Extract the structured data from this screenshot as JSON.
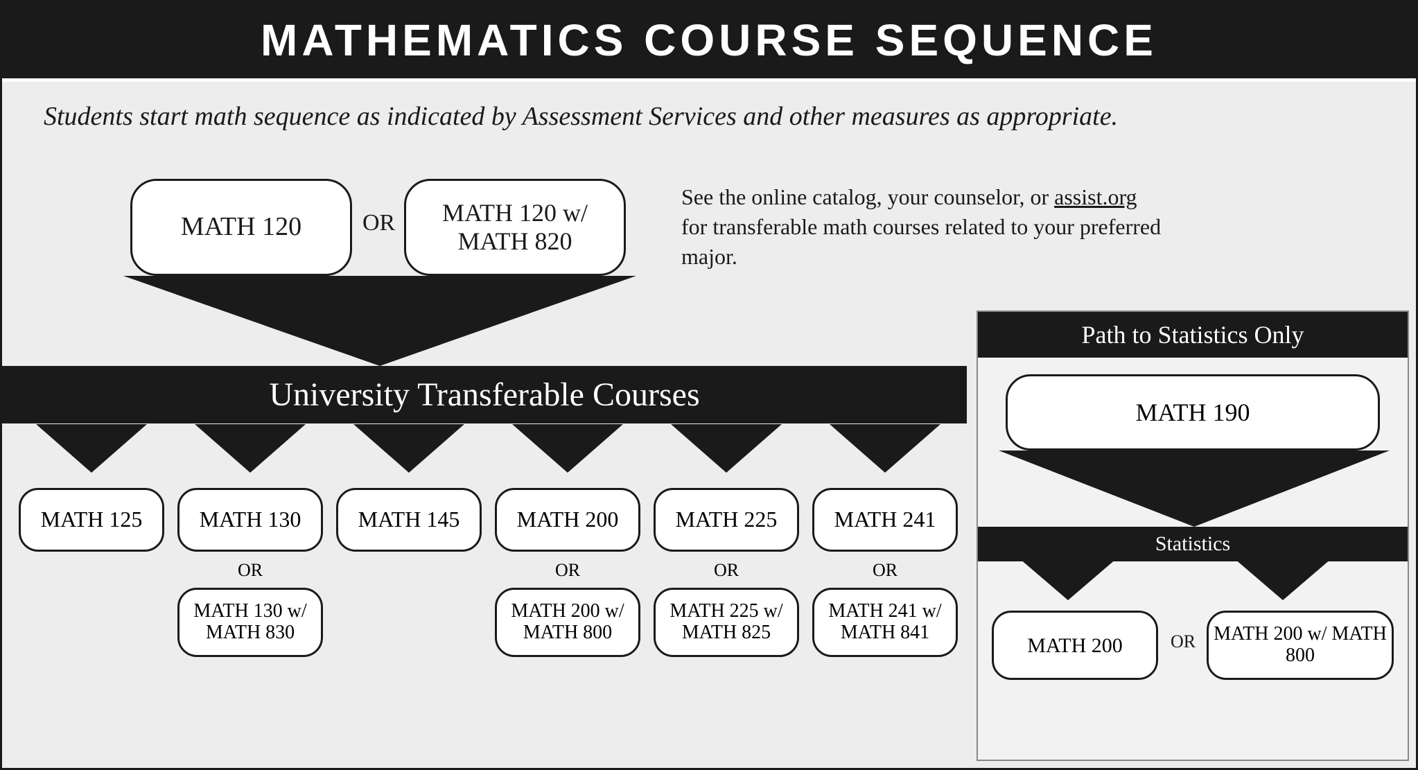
{
  "title": "MATHEMATICS  COURSE  SEQUENCE",
  "subtitle": "Students start math sequence as indicated by Assessment Services and other measures as appropriate.",
  "start": {
    "option1": "MATH 120",
    "or": "OR",
    "option2": "MATH 120 w/ MATH 820"
  },
  "helper": {
    "pre": "See the online catalog, your counselor, or ",
    "link": "assist.org",
    "post": " for transferable math courses related to your preferred major."
  },
  "university_bar": "University Transferable Courses",
  "courses": [
    {
      "main": "MATH 125",
      "alt": null
    },
    {
      "main": "MATH 130",
      "alt": "MATH 130 w/ MATH 830"
    },
    {
      "main": "MATH 145",
      "alt": null
    },
    {
      "main": "MATH 200",
      "alt": "MATH 200 w/ MATH 800"
    },
    {
      "main": "MATH 225",
      "alt": "MATH 225 w/ MATH 825"
    },
    {
      "main": "MATH 241",
      "alt": "MATH 241 w/ MATH 841"
    }
  ],
  "or_label": "OR",
  "stats": {
    "title": "Path to Statistics Only",
    "entry": "MATH 190",
    "sub_bar": "Statistics",
    "option1": "MATH 200",
    "or": "OR",
    "option2": "MATH 200 w/ MATH 800"
  },
  "colors": {
    "black": "#1a1a1a",
    "bg": "#ededed",
    "panel": "#f2f2f2",
    "white": "#ffffff"
  },
  "layout": {
    "course_col_left_start": 24,
    "course_col_spacing": 229
  }
}
